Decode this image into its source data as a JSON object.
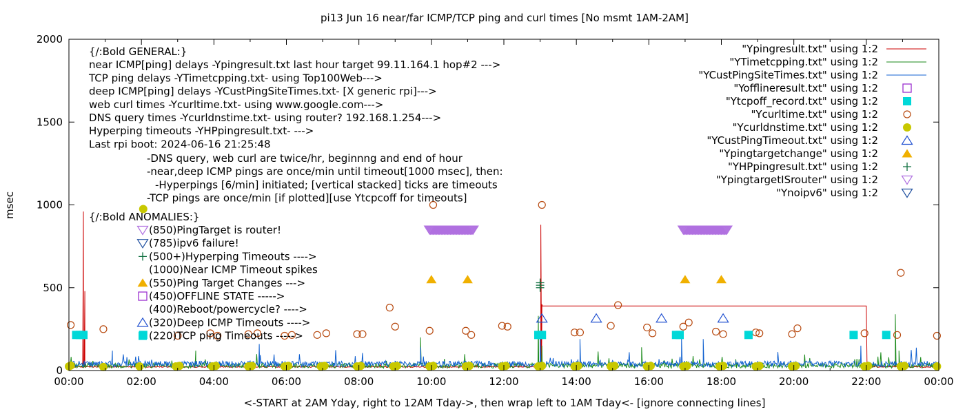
{
  "chart_data": {
    "type": "scatter",
    "title": "pi13 Jun 16  near/far ICMP/TCP ping and curl times [No msmt 1AM-2AM]",
    "xlabel": "<-START at 2AM Yday, right to 12AM Tday->, then wrap left to 1AM Tday<- [ignore connecting lines]",
    "ylabel": "msec",
    "xlim": [
      0,
      24
    ],
    "ylim": [
      0,
      2000
    ],
    "x_ticks": [
      "00:00",
      "02:00",
      "04:00",
      "06:00",
      "08:00",
      "10:00",
      "12:00",
      "14:00",
      "16:00",
      "18:00",
      "20:00",
      "22:00",
      "00:00"
    ],
    "y_ticks": [
      0,
      500,
      1000,
      1500,
      2000
    ],
    "grid": false,
    "legend_position": "top-right",
    "legend": [
      {
        "label": "\"Ypingresult.txt\" using 1:2",
        "style": "line",
        "color": "#cc0000"
      },
      {
        "label": "\"YTimetcpping.txt\" using 1:2",
        "style": "line",
        "color": "#1a8a1a"
      },
      {
        "label": "\"YCustPingSiteTimes.txt\" using 1:2",
        "style": "line",
        "color": "#1060d0"
      },
      {
        "label": "\"Yofflineresult.txt\" using 1:2",
        "style": "open-square",
        "color": "#9b30d0"
      },
      {
        "label": "\"Ytcpoff_record.txt\" using 1:2",
        "style": "filled-square",
        "color": "#00d8d8"
      },
      {
        "label": "\"Ycurltime.txt\" using 1:2",
        "style": "open-circle",
        "color": "#b84a10"
      },
      {
        "label": "\"Ycurldnstime.txt\" using 1:2",
        "style": "filled-circle",
        "color": "#c8c800"
      },
      {
        "label": "\"YCustPingTimeout.txt\" using 1:2",
        "style": "open-triangle-up",
        "color": "#2050d0"
      },
      {
        "label": "\"Ypingtargetchange\" using 1:2",
        "style": "filled-triangle-up",
        "color": "#f0b000"
      },
      {
        "label": "\"YHPpingresult.txt\" using 1:2",
        "style": "plus",
        "color": "#107040"
      },
      {
        "label": "\"YpingtargetISrouter\" using 1:2",
        "style": "open-triangle-down",
        "color": "#b070e0"
      },
      {
        "label": "\"Ynoipv6\" using 1:2",
        "style": "open-triangle-down",
        "color": "#2050a0"
      }
    ],
    "annotations_general": [
      "{/:Bold GENERAL:}",
      "near ICMP[ping] delays -Ypingresult.txt last hour target 99.11.164.1 hop#2 --->",
      "TCP ping delays -YTimetcpping.txt- using Top100Web--->",
      "deep ICMP[ping] delays -YCustPingSiteTimes.txt- [X generic rpi]--->",
      "web curl times -Ycurltime.txt- using www.google.com--->",
      "DNS query times -Ycurldnstime.txt- using router? 192.168.1.254--->",
      "Hyperping timeouts -YHPpingresult.txt- --->",
      "Last rpi boot: 2024-06-16 21:25:48"
    ],
    "annotations_notes": [
      "-DNS query, web curl are twice/hr, beginnng and end of hour",
      "-near,deep ICMP pings are once/min until timeout[1000 msec], then:",
      "-Hyperpings [6/min] initiated; [vertical stacked] ticks are timeouts",
      "-TCP pings are once/min [if plotted][use Ytcpcoff for timeouts]"
    ],
    "annotations_anomalies_title": "{/:Bold ANOMALIES:}",
    "annotations_anomalies": [
      {
        "style": "open-triangle-down",
        "color": "#b070e0",
        "text": "(850)PingTarget is router!"
      },
      {
        "style": "open-triangle-down",
        "color": "#2050a0",
        "text": "(785)ipv6 failure!"
      },
      {
        "style": "plus",
        "color": "#107040",
        "text": "(500+)Hyperping Timeouts ---->"
      },
      {
        "style": "none",
        "color": "",
        "text": "(1000)Near ICMP Timeout spikes"
      },
      {
        "style": "filled-triangle-up",
        "color": "#f0b000",
        "text": "(550)Ping Target Changes --->"
      },
      {
        "style": "open-square",
        "color": "#9b30d0",
        "text": "(450)OFFLINE STATE ----->"
      },
      {
        "style": "none",
        "color": "",
        "text": "(400)Reboot/powercycle? ---->"
      },
      {
        "style": "open-triangle-up",
        "color": "#2050d0",
        "text": "(320)Deep ICMP Timeouts ---->"
      },
      {
        "style": "filled-square",
        "color": "#00d8d8",
        "text": "(220)TCP ping Timeouts ----->"
      }
    ],
    "series": [
      {
        "name": "\"Ypingresult.txt\" using 1:2",
        "style": "line",
        "color": "#cc0000",
        "baseline": 22,
        "noise": 6,
        "spikes": [
          [
            0.4,
            960
          ],
          [
            0.44,
            480
          ],
          [
            0.48,
            30
          ],
          [
            13.02,
            880
          ],
          [
            13.05,
            400
          ],
          [
            13.1,
            30
          ],
          [
            14.12,
            420
          ],
          [
            14.15,
            40
          ],
          [
            21.05,
            22
          ],
          [
            21.1,
            410
          ],
          [
            21.2,
            390
          ],
          [
            22.0,
            390
          ],
          [
            22.05,
            22
          ]
        ]
      },
      {
        "name": "\"YTimetcpping.txt\" using 1:2",
        "style": "line",
        "color": "#1a8a1a",
        "baseline": 30,
        "noise": 30,
        "spikes": [
          [
            3.5,
            120
          ],
          [
            5.25,
            110
          ],
          [
            9.7,
            200
          ],
          [
            12.95,
            330
          ],
          [
            13.05,
            150
          ],
          [
            15.8,
            140
          ],
          [
            22.8,
            340
          ],
          [
            22.9,
            120
          ]
        ]
      },
      {
        "name": "\"YCustPingSiteTimes.txt\" using 1:2",
        "style": "line",
        "color": "#1060d0",
        "baseline": 40,
        "noise": 35,
        "spikes": [
          [
            1.2,
            120
          ],
          [
            5.25,
            160
          ],
          [
            9.7,
            140
          ],
          [
            13.0,
            220
          ],
          [
            14.1,
            190
          ],
          [
            16.9,
            200
          ],
          [
            17.5,
            190
          ],
          [
            21.85,
            150
          ]
        ]
      },
      {
        "name": "\"Ycurltime.txt\" using 1:2",
        "style": "open-circle",
        "color": "#b84a10",
        "points": [
          [
            0.05,
            275
          ],
          [
            0.95,
            250
          ],
          [
            2.05,
            215
          ],
          [
            3.0,
            210
          ],
          [
            3.9,
            225
          ],
          [
            4.1,
            210
          ],
          [
            4.95,
            220
          ],
          [
            5.2,
            225
          ],
          [
            5.95,
            210
          ],
          [
            6.15,
            215
          ],
          [
            6.85,
            215
          ],
          [
            7.1,
            225
          ],
          [
            7.95,
            220
          ],
          [
            8.1,
            220
          ],
          [
            8.85,
            380
          ],
          [
            9.0,
            265
          ],
          [
            9.95,
            240
          ],
          [
            10.05,
            1000
          ],
          [
            10.95,
            240
          ],
          [
            11.1,
            215
          ],
          [
            11.95,
            270
          ],
          [
            12.1,
            265
          ],
          [
            12.95,
            215
          ],
          [
            13.05,
            1000
          ],
          [
            13.95,
            230
          ],
          [
            14.1,
            230
          ],
          [
            14.95,
            270
          ],
          [
            15.15,
            395
          ],
          [
            15.95,
            260
          ],
          [
            16.1,
            225
          ],
          [
            16.95,
            265
          ],
          [
            17.1,
            290
          ],
          [
            17.85,
            235
          ],
          [
            18.05,
            220
          ],
          [
            18.95,
            230
          ],
          [
            19.05,
            225
          ],
          [
            19.95,
            220
          ],
          [
            20.1,
            255
          ],
          [
            21.95,
            225
          ],
          [
            22.85,
            215
          ],
          [
            22.95,
            590
          ],
          [
            23.95,
            210
          ]
        ]
      },
      {
        "name": "\"Ycurldnstime.txt\" using 1:2",
        "style": "filled-circle",
        "color": "#c8c800",
        "points": [
          [
            0.0,
            25
          ],
          [
            0.05,
            30
          ],
          [
            0.95,
            22
          ],
          [
            1.95,
            25
          ],
          [
            2.05,
            975
          ],
          [
            2.95,
            25
          ],
          [
            3.05,
            28
          ],
          [
            3.95,
            25
          ],
          [
            4.05,
            28
          ],
          [
            4.95,
            25
          ],
          [
            5.05,
            28
          ],
          [
            5.95,
            25
          ],
          [
            6.05,
            28
          ],
          [
            6.95,
            25
          ],
          [
            7.05,
            28
          ],
          [
            7.95,
            25
          ],
          [
            8.05,
            28
          ],
          [
            8.95,
            25
          ],
          [
            9.05,
            28
          ],
          [
            9.95,
            25
          ],
          [
            10.05,
            28
          ],
          [
            10.95,
            25
          ],
          [
            11.05,
            28
          ],
          [
            11.95,
            25
          ],
          [
            12.05,
            28
          ],
          [
            12.95,
            25
          ],
          [
            13.05,
            28
          ],
          [
            13.95,
            25
          ],
          [
            14.05,
            28
          ],
          [
            14.95,
            25
          ],
          [
            15.05,
            28
          ],
          [
            15.95,
            25
          ],
          [
            16.05,
            28
          ],
          [
            16.95,
            25
          ],
          [
            17.05,
            28
          ],
          [
            17.95,
            25
          ],
          [
            18.05,
            28
          ],
          [
            18.95,
            25
          ],
          [
            19.05,
            28
          ],
          [
            19.95,
            25
          ],
          [
            20.05,
            28
          ],
          [
            21.95,
            25
          ],
          [
            22.05,
            28
          ],
          [
            22.95,
            25
          ],
          [
            23.05,
            28
          ],
          [
            23.95,
            25
          ]
        ]
      },
      {
        "name": "\"Ytcpoff_record.txt\" using 1:2",
        "style": "filled-square",
        "color": "#00d8d8",
        "points": [
          [
            0.2,
            215
          ],
          [
            0.3,
            215
          ],
          [
            0.4,
            215
          ],
          [
            2.05,
            215
          ],
          [
            12.95,
            215
          ],
          [
            13.05,
            215
          ],
          [
            16.75,
            215
          ],
          [
            16.85,
            215
          ],
          [
            18.75,
            215
          ],
          [
            21.65,
            215
          ],
          [
            22.55,
            215
          ]
        ]
      },
      {
        "name": "\"YCustPingTimeout.txt\" using 1:2",
        "style": "open-triangle-up",
        "color": "#2050d0",
        "points": [
          [
            13.05,
            315
          ],
          [
            14.55,
            315
          ],
          [
            16.35,
            315
          ],
          [
            18.05,
            315
          ]
        ]
      },
      {
        "name": "\"Ypingtargetchange\" using 1:2",
        "style": "filled-triangle-up",
        "color": "#f0b000",
        "points": [
          [
            10.0,
            550
          ],
          [
            11.0,
            550
          ],
          [
            17.0,
            550
          ],
          [
            18.0,
            550
          ]
        ]
      },
      {
        "name": "\"YHPpingresult.txt\" using 1:2",
        "style": "plus",
        "color": "#107040",
        "points": [
          [
            13.0,
            500
          ],
          [
            13.0,
            515
          ],
          [
            13.0,
            530
          ]
        ]
      },
      {
        "name": "\"YpingtargetISrouter\" using 1:2",
        "style": "open-triangle-down",
        "color": "#b070e0",
        "ranges": [
          [
            9.95,
            11.15,
            850
          ],
          [
            16.95,
            18.15,
            850
          ]
        ]
      }
    ]
  }
}
